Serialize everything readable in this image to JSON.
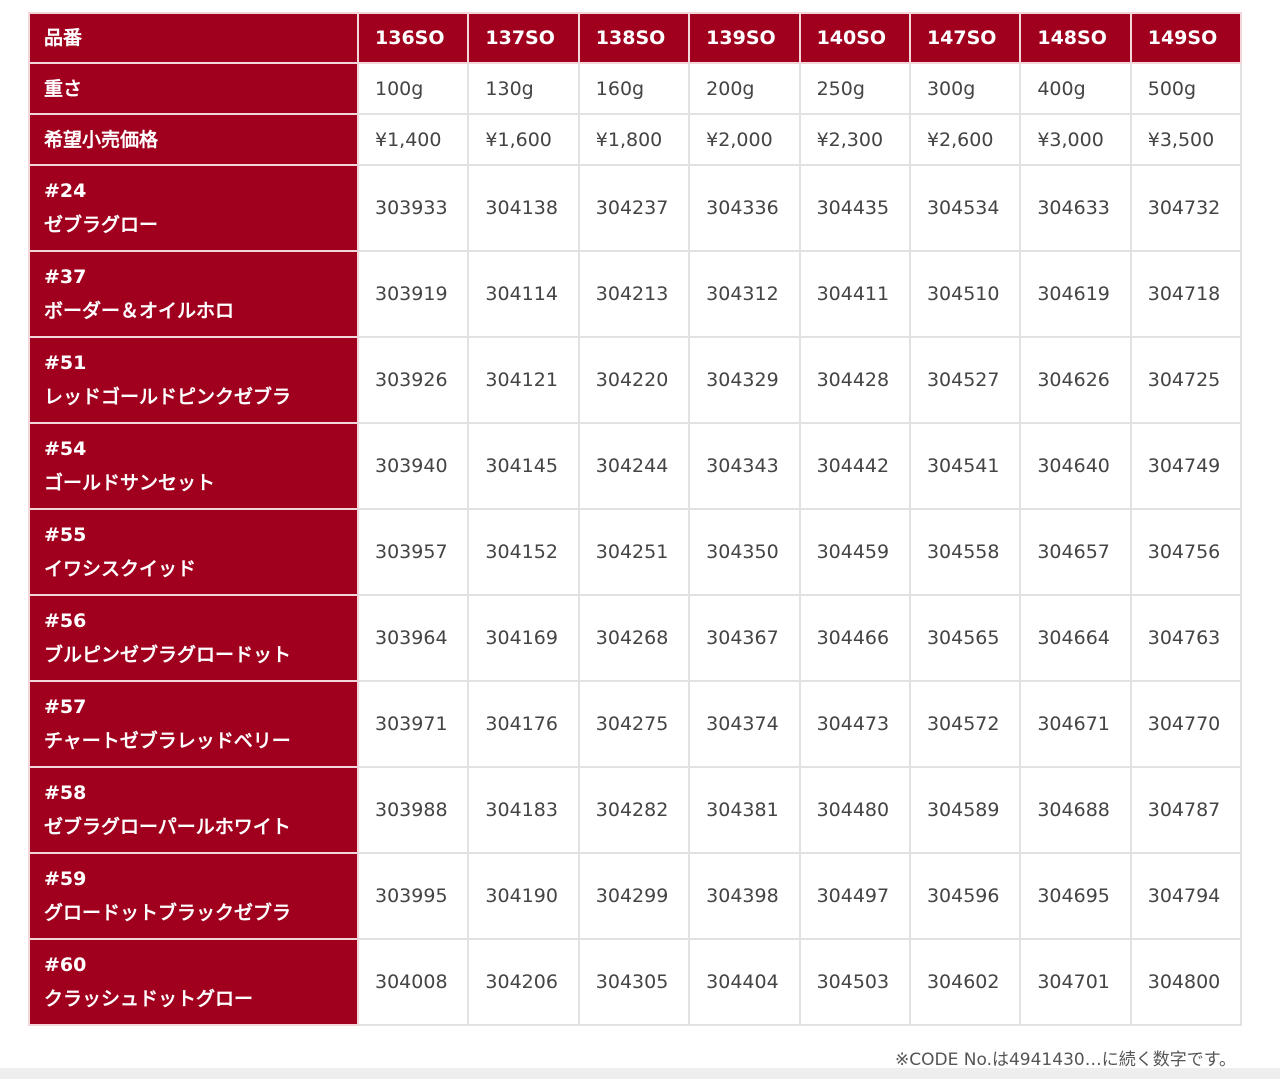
{
  "header": {
    "label": "品番",
    "models": [
      "136SO",
      "137SO",
      "138SO",
      "139SO",
      "140SO",
      "147SO",
      "148SO",
      "149SO"
    ]
  },
  "weight": {
    "label": "重さ",
    "values": [
      "100g",
      "130g",
      "160g",
      "200g",
      "250g",
      "300g",
      "400g",
      "500g"
    ]
  },
  "price": {
    "label": "希望小売価格",
    "values": [
      "¥1,400",
      "¥1,600",
      "¥1,800",
      "¥2,000",
      "¥2,300",
      "¥2,600",
      "¥3,000",
      "¥3,500"
    ]
  },
  "rows": [
    {
      "num": "#24",
      "name": "ゼブラグロー",
      "codes": [
        "303933",
        "304138",
        "304237",
        "304336",
        "304435",
        "304534",
        "304633",
        "304732"
      ]
    },
    {
      "num": "#37",
      "name": "ボーダー＆オイルホロ",
      "codes": [
        "303919",
        "304114",
        "304213",
        "304312",
        "304411",
        "304510",
        "304619",
        "304718"
      ]
    },
    {
      "num": "#51",
      "name": "レッドゴールドピンクゼブラ",
      "codes": [
        "303926",
        "304121",
        "304220",
        "304329",
        "304428",
        "304527",
        "304626",
        "304725"
      ]
    },
    {
      "num": "#54",
      "name": "ゴールドサンセット",
      "codes": [
        "303940",
        "304145",
        "304244",
        "304343",
        "304442",
        "304541",
        "304640",
        "304749"
      ]
    },
    {
      "num": "#55",
      "name": "イワシスクイッド",
      "codes": [
        "303957",
        "304152",
        "304251",
        "304350",
        "304459",
        "304558",
        "304657",
        "304756"
      ]
    },
    {
      "num": "#56",
      "name": "ブルピンゼブラグロードット",
      "codes": [
        "303964",
        "304169",
        "304268",
        "304367",
        "304466",
        "304565",
        "304664",
        "304763"
      ]
    },
    {
      "num": "#57",
      "name": "チャートゼブラレッドベリー",
      "codes": [
        "303971",
        "304176",
        "304275",
        "304374",
        "304473",
        "304572",
        "304671",
        "304770"
      ]
    },
    {
      "num": "#58",
      "name": "ゼブラグローパールホワイト",
      "codes": [
        "303988",
        "304183",
        "304282",
        "304381",
        "304480",
        "304589",
        "304688",
        "304787"
      ]
    },
    {
      "num": "#59",
      "name": "グロードットブラックゼブラ",
      "codes": [
        "303995",
        "304190",
        "304299",
        "304398",
        "304497",
        "304596",
        "304695",
        "304794"
      ]
    },
    {
      "num": "#60",
      "name": "クラッシュドットグロー",
      "codes": [
        "304008",
        "304206",
        "304305",
        "304404",
        "304503",
        "304602",
        "304701",
        "304800"
      ]
    }
  ],
  "note": "※CODE No.は4941430…に続く数字です。",
  "colors": {
    "header_bg": "#a0001e"
  }
}
